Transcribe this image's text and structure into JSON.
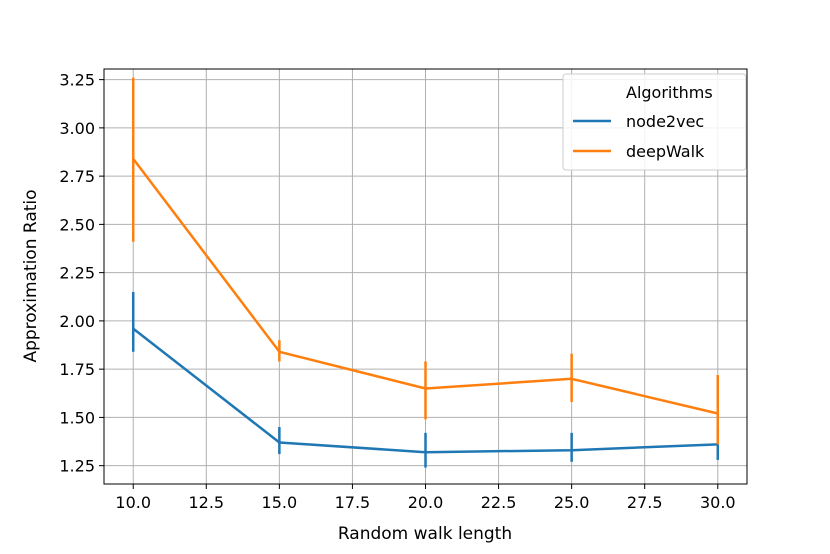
{
  "chart_data": {
    "type": "line",
    "title": "",
    "xlabel": "Random walk length",
    "ylabel": "Approximation Ratio",
    "x": [
      10,
      15,
      20,
      25,
      30
    ],
    "xlim": [
      9.0,
      31.0
    ],
    "ylim": [
      1.155,
      3.305
    ],
    "xticks": [
      "10.0",
      "12.5",
      "15.0",
      "17.5",
      "20.0",
      "22.5",
      "25.0",
      "27.5",
      "30.0"
    ],
    "xtick_values": [
      10,
      12.5,
      15,
      17.5,
      20,
      22.5,
      25,
      27.5,
      30
    ],
    "yticks": [
      "1.25",
      "1.50",
      "1.75",
      "2.00",
      "2.25",
      "2.50",
      "2.75",
      "3.00",
      "3.25"
    ],
    "ytick_values": [
      1.25,
      1.5,
      1.75,
      2.0,
      2.25,
      2.5,
      2.75,
      3.0,
      3.25
    ],
    "grid": true,
    "legend": {
      "title": "Algorithms",
      "placement": "top-right"
    },
    "series": [
      {
        "name": "node2vec",
        "color": "#1f77b4",
        "values": [
          1.96,
          1.37,
          1.32,
          1.33,
          1.36
        ],
        "err_low": [
          1.84,
          1.31,
          1.24,
          1.27,
          1.28
        ],
        "err_high": [
          2.15,
          1.45,
          1.42,
          1.42,
          1.45
        ]
      },
      {
        "name": "deepWalk",
        "color": "#ff7f0e",
        "values": [
          2.84,
          1.84,
          1.65,
          1.7,
          1.52
        ],
        "err_low": [
          2.41,
          1.79,
          1.49,
          1.58,
          1.36
        ],
        "err_high": [
          3.26,
          1.9,
          1.79,
          1.83,
          1.72
        ]
      }
    ]
  }
}
